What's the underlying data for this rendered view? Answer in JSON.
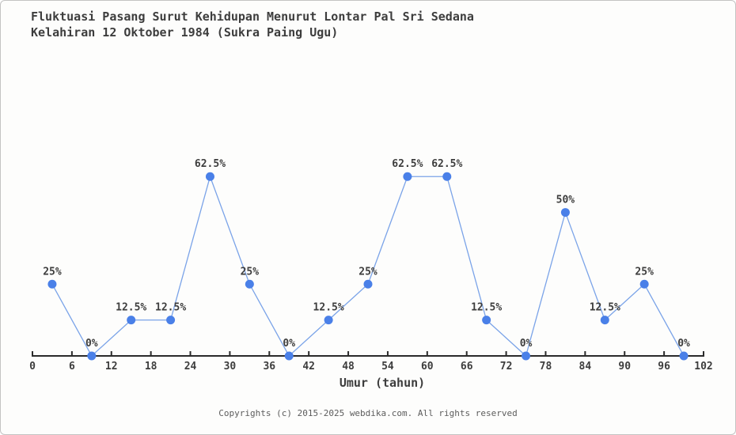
{
  "title": {
    "line1": "Fluktuasi Pasang Surut Kehidupan Menurut Lontar Pal Sri Sedana",
    "line2": "Kelahiran 12 Oktober 1984 (Sukra Paing Ugu)"
  },
  "footer": {
    "text": "Copyrights (c) 2015-2025 webdika.com. All rights reserved"
  },
  "chart_data": {
    "type": "line",
    "title": "Fluktuasi Pasang Surut Kehidupan Menurut Lontar Pal Sri Sedana Kelahiran 12 Oktober 1984 (Sukra Paing Ugu)",
    "xlabel": "Umur (tahun)",
    "ylabel": "",
    "x": [
      3,
      9,
      15,
      21,
      27,
      33,
      39,
      45,
      51,
      57,
      63,
      69,
      75,
      81,
      87,
      93,
      99
    ],
    "values": [
      25,
      0,
      12.5,
      12.5,
      62.5,
      25,
      0,
      12.5,
      25,
      62.5,
      62.5,
      12.5,
      0,
      50,
      12.5,
      25,
      0
    ],
    "point_labels": [
      "25%",
      "0%",
      "12.5%",
      "12.5%",
      "62.5%",
      "25%",
      "0%",
      "12.5%",
      "25%",
      "62.5%",
      "62.5%",
      "12.5%",
      "0%",
      "50%",
      "12.5%",
      "25%",
      "0%"
    ],
    "x_ticks": [
      0,
      6,
      12,
      18,
      24,
      30,
      36,
      42,
      48,
      54,
      60,
      66,
      72,
      78,
      84,
      90,
      96,
      102
    ],
    "xlim": [
      0,
      102
    ],
    "ylim": [
      0,
      70
    ],
    "grid": false,
    "legend_position": "none",
    "y_axis_shown": false,
    "colors": {
      "marker": "#4a80e8",
      "line": "#7aa3e8",
      "axis": "#2b2b2b",
      "text": "#3d3d3d",
      "footer_text": "#5c5c5c",
      "background": "#fdfdfc",
      "border": "#c3c3c3"
    }
  }
}
